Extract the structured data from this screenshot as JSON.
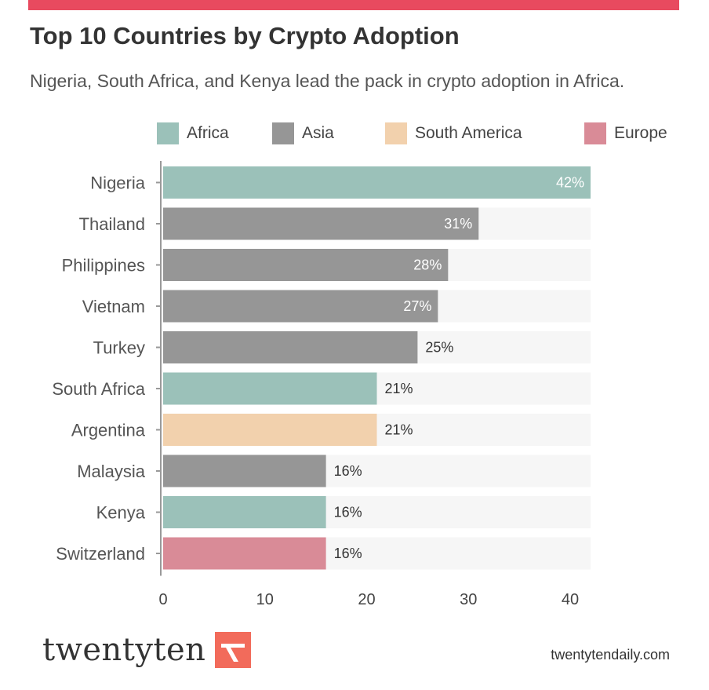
{
  "header": {
    "title": "Top 10 Countries by Crypto Adoption",
    "subtitle": "Nigeria, South Africa, and Kenya lead the pack in crypto adoption in Africa."
  },
  "colors": {
    "accent_bar": "#e84a5f",
    "track": "#f6f6f6",
    "axis": "#999999",
    "brand_mark": "#f26b5b"
  },
  "legend": [
    {
      "label": "Africa",
      "color": "#9bc1b9"
    },
    {
      "label": "Asia",
      "color": "#969696"
    },
    {
      "label": "South America",
      "color": "#f2d1ad"
    },
    {
      "label": "Europe",
      "color": "#d98b97"
    }
  ],
  "chart_data": {
    "type": "bar",
    "orientation": "horizontal",
    "title": "",
    "xlabel": "",
    "ylabel": "",
    "xlim": [
      0,
      42
    ],
    "xticks": [
      0,
      10,
      20,
      30,
      40
    ],
    "grid": false,
    "legend_position": "top",
    "value_suffix": "%",
    "categories": [
      "Nigeria",
      "Thailand",
      "Philippines",
      "Vietnam",
      "Turkey",
      "South Africa",
      "Argentina",
      "Malaysia",
      "Kenya",
      "Switzerland"
    ],
    "values": [
      42,
      31,
      28,
      27,
      25,
      21,
      21,
      16,
      16,
      16
    ],
    "regions": [
      "Africa",
      "Asia",
      "Asia",
      "Asia",
      "Asia",
      "Africa",
      "South America",
      "Asia",
      "Africa",
      "Europe"
    ]
  },
  "footer": {
    "brand": "twentyten",
    "brand_icon": "paper-plane-logo",
    "url": "twentytendaily.com"
  }
}
